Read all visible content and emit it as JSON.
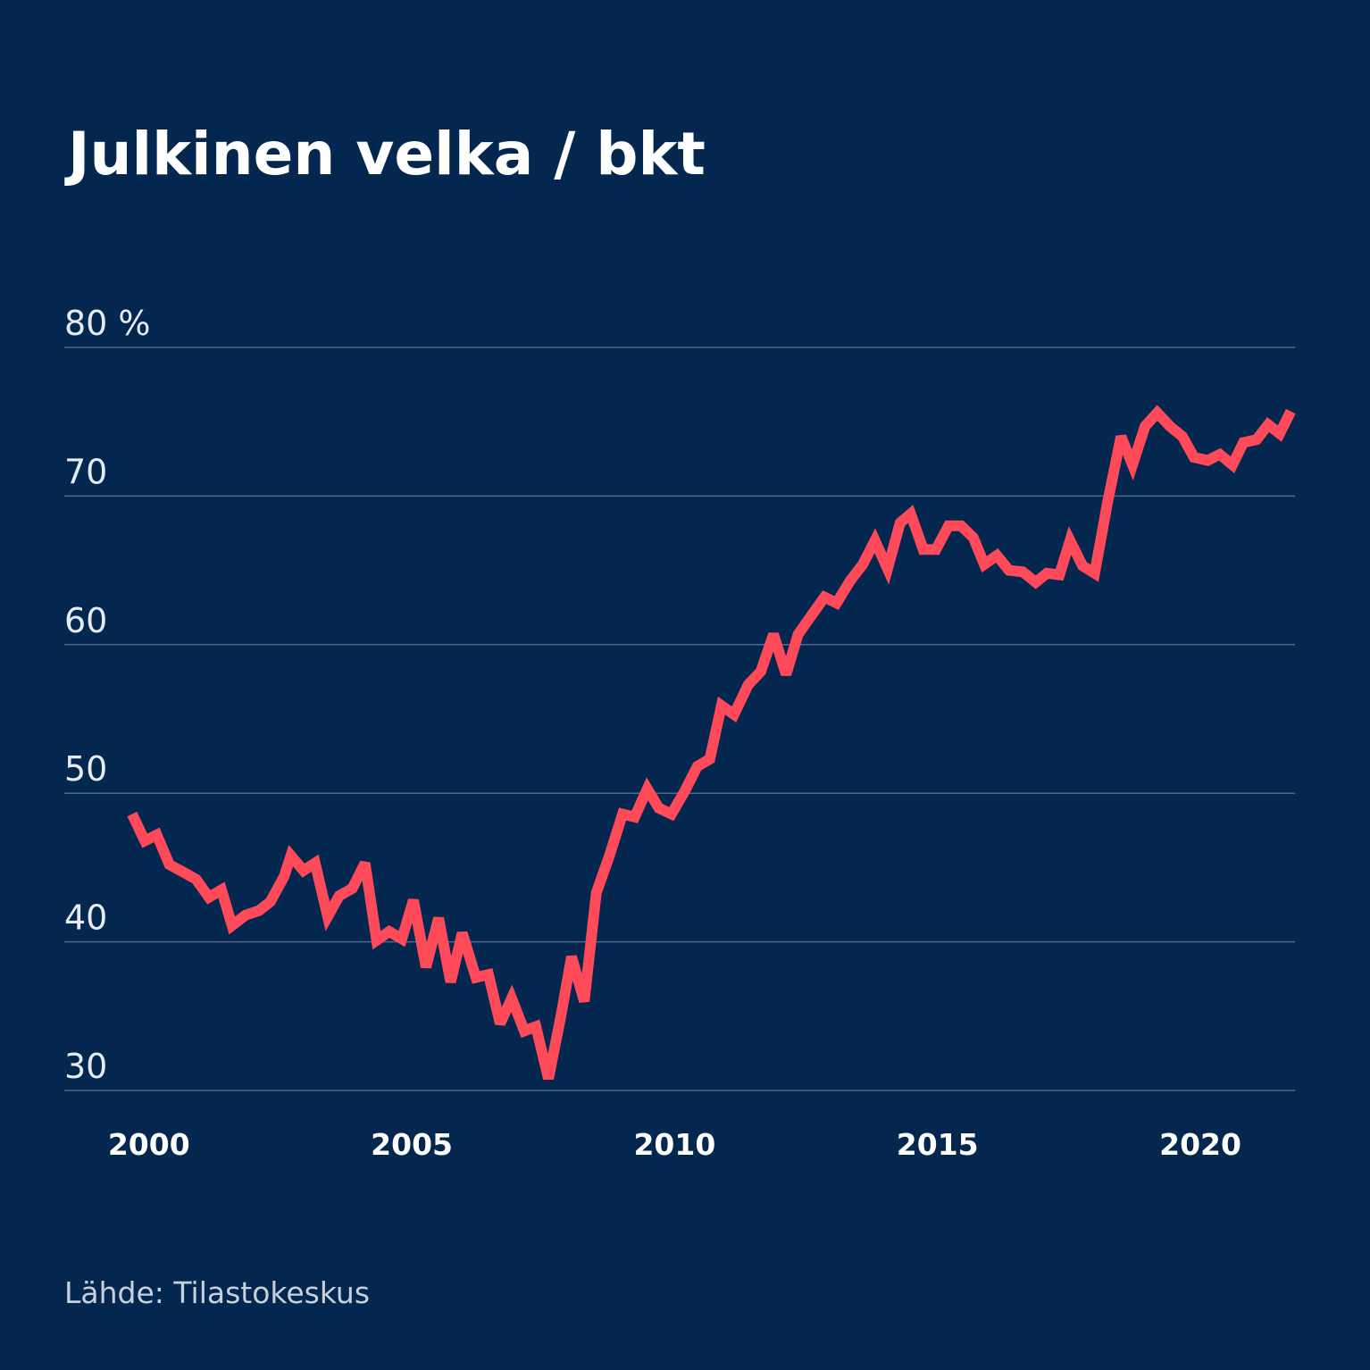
{
  "chart_data": {
    "type": "line",
    "title": "Julkinen velka / bkt",
    "source": "Lähde: Tilastokeskus",
    "xlim": [
      1998.39,
      2021.8
    ],
    "xticks": [
      2000,
      2005,
      2010,
      2015,
      2020
    ],
    "ylim": [
      30,
      80
    ],
    "yticks": [
      30,
      40,
      50,
      60,
      70,
      {
        "value": 80,
        "label": "80 %"
      }
    ],
    "grid": true,
    "x": [
      1999.68,
      1999.92,
      2000.15,
      2000.39,
      2000.65,
      2000.9,
      2001.14,
      2001.38,
      2001.58,
      2001.84,
      2002.09,
      2002.31,
      2002.57,
      2002.7,
      2002.94,
      2003.16,
      2003.4,
      2003.62,
      2003.87,
      2004.11,
      2004.33,
      2004.57,
      2004.81,
      2005.03,
      2005.27,
      2005.51,
      2005.74,
      2005.96,
      2006.22,
      2006.46,
      2006.68,
      2006.9,
      2007.14,
      2007.36,
      2007.6,
      2007.83,
      2008.04,
      2008.28,
      2008.51,
      2008.75,
      2009.01,
      2009.24,
      2009.48,
      2009.7,
      2009.94,
      2010.2,
      2010.43,
      2010.67,
      2010.89,
      2011.13,
      2011.4,
      2011.64,
      2011.88,
      2012.12,
      2012.35,
      2012.61,
      2012.85,
      2013.08,
      2013.34,
      2013.58,
      2013.81,
      2014.05,
      2014.29,
      2014.49,
      2014.73,
      2014.97,
      2015.21,
      2015.45,
      2015.68,
      2015.89,
      2016.13,
      2016.36,
      2016.62,
      2016.87,
      2017.08,
      2017.32,
      2017.52,
      2017.76,
      2017.99,
      2018.23,
      2018.49,
      2018.71,
      2018.95,
      2019.18,
      2019.42,
      2019.66,
      2019.88,
      2020.14,
      2020.37,
      2020.61,
      2020.82,
      2021.07,
      2021.29,
      2021.51,
      2021.72
    ],
    "series": [
      {
        "color": "#ff4a5a",
        "values": [
          48.6,
          46.8,
          47.2,
          45.2,
          44.7,
          44.2,
          43.0,
          43.5,
          41.1,
          41.8,
          42.1,
          42.7,
          44.4,
          45.8,
          44.8,
          45.3,
          41.7,
          43.1,
          43.6,
          45.3,
          40.1,
          40.7,
          40.2,
          42.8,
          38.3,
          41.6,
          37.3,
          40.6,
          37.6,
          37.8,
          34.5,
          36.2,
          34.0,
          34.3,
          30.8,
          34.9,
          39.0,
          36.0,
          43.3,
          45.7,
          48.6,
          48.4,
          50.3,
          49.0,
          48.6,
          50.2,
          51.8,
          52.3,
          55.9,
          55.3,
          57.3,
          58.2,
          60.7,
          58.0,
          60.7,
          62.0,
          63.2,
          62.8,
          64.3,
          65.4,
          67.0,
          65.1,
          68.2,
          68.8,
          66.4,
          66.4,
          68.0,
          68.0,
          67.2,
          65.4,
          66.0,
          65.0,
          64.9,
          64.2,
          64.8,
          64.7,
          67.0,
          65.3,
          64.8,
          69.5,
          74.0,
          72.1,
          74.7,
          75.6,
          74.7,
          74.0,
          72.6,
          72.4,
          72.8,
          72.1,
          73.6,
          73.8,
          74.8,
          74.2,
          75.7
        ]
      }
    ]
  }
}
